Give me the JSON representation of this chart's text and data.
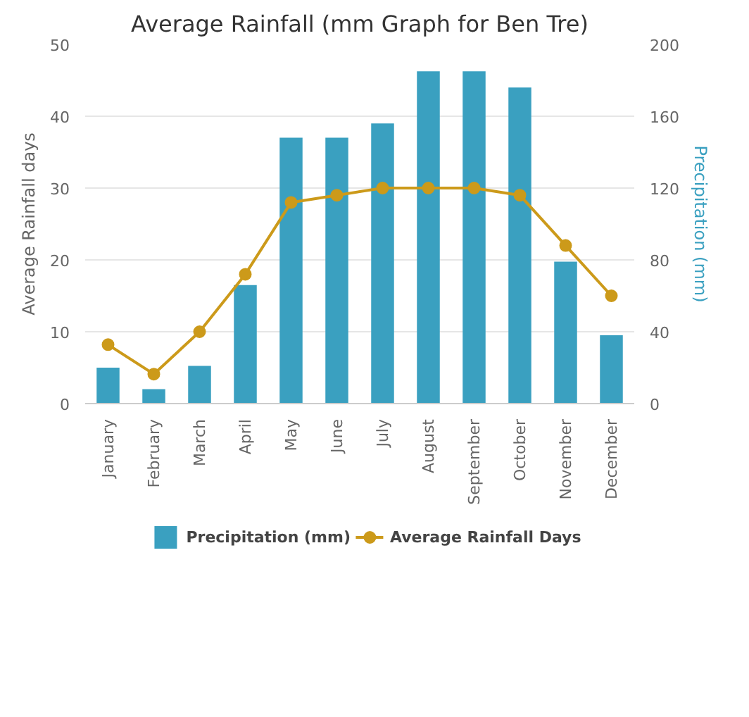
{
  "chart_data": {
    "type": "bar",
    "title": "Average Rainfall (mm Graph for Ben Tre)",
    "categories": [
      "January",
      "February",
      "March",
      "April",
      "May",
      "June",
      "July",
      "August",
      "September",
      "October",
      "November",
      "December"
    ],
    "series": [
      {
        "name": "Precipitation (mm)",
        "type": "bar",
        "axis": "y2",
        "color": "#3aa0c0",
        "values": [
          20,
          8,
          21,
          66,
          148,
          148,
          156,
          185,
          185,
          176,
          79,
          38
        ]
      },
      {
        "name": "Average Rainfall Days",
        "type": "line",
        "color": "#cc9a1a",
        "marker": "circle",
        "values": [
          8.2,
          4.1,
          10,
          18,
          28,
          29,
          30,
          30,
          30,
          29,
          22,
          15
        ]
      }
    ],
    "ylabel": "Average Rainfall days",
    "y2label": "Precipitation (mm)",
    "ylim": [
      0,
      50
    ],
    "yticks": [
      0,
      10,
      20,
      30,
      40,
      50
    ],
    "y2lim": [
      0,
      200
    ],
    "y2ticks": [
      0,
      40,
      80,
      120,
      160,
      200
    ],
    "grid": "y",
    "legend": "bottom"
  }
}
